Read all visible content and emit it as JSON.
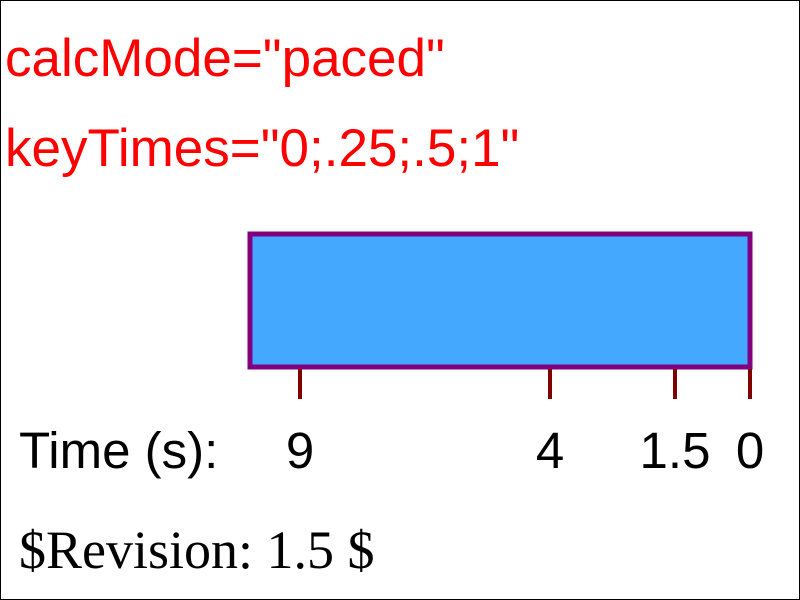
{
  "header": {
    "line1": "calcMode=\"paced\"",
    "line2": "keyTimes=\"0;.25;.5;1\""
  },
  "animated_rect": {
    "fill_color": "#44a8ff",
    "stroke_color": "#800080"
  },
  "timeline": {
    "label": "Time (s):",
    "tick_color": "#800000",
    "ticks": [
      {
        "label": "9"
      },
      {
        "label": "4"
      },
      {
        "label": "1.5"
      },
      {
        "label": "0"
      }
    ]
  },
  "footer": {
    "revision": "$Revision: 1.5 $"
  },
  "colors": {
    "header_text": "#ff0000",
    "body_text": "#000000"
  }
}
